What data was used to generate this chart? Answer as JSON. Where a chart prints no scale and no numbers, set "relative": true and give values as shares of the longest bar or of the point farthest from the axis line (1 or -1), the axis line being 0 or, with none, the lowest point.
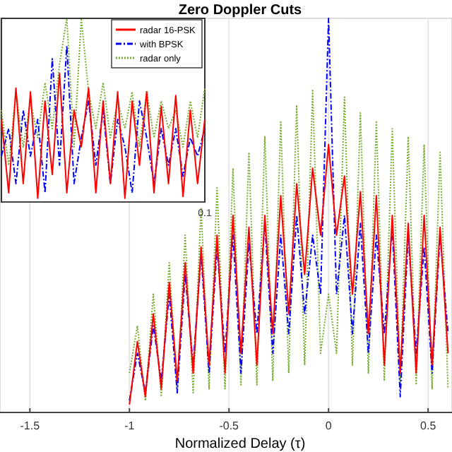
{
  "chart_data": [
    {
      "type": "line",
      "title": "Zero Doppler Cuts",
      "xlabel": "Normalized Delay (τ)",
      "relative": true,
      "grid": "x",
      "xlim": [
        -1.65,
        0.62
      ],
      "xticks": [
        -1.5,
        -1,
        -0.5,
        0,
        0.5
      ],
      "x": [
        -1,
        -0.96,
        -0.92,
        -0.88,
        -0.84,
        -0.8,
        -0.76,
        -0.72,
        -0.68,
        -0.64,
        -0.6,
        -0.56,
        -0.52,
        -0.48,
        -0.44,
        -0.4,
        -0.36,
        -0.32,
        -0.28,
        -0.24,
        -0.2,
        -0.16,
        -0.12,
        -0.08,
        -0.04,
        0,
        0.04,
        0.08,
        0.12,
        0.16,
        0.2,
        0.24,
        0.28,
        0.32,
        0.36,
        0.4,
        0.44,
        0.48,
        0.52,
        0.56,
        0.6
      ],
      "series": [
        {
          "color": "#ff0000",
          "line_style": "solid",
          "values": [
            0.02,
            0.18,
            0.04,
            0.25,
            0.06,
            0.33,
            0.08,
            0.38,
            0.1,
            0.42,
            0.12,
            0.45,
            0.1,
            0.5,
            0.15,
            0.47,
            0.12,
            0.5,
            0.2,
            0.55,
            0.25,
            0.58,
            0.35,
            0.62,
            0.45,
            0.68,
            0.45,
            0.6,
            0.3,
            0.56,
            0.2,
            0.55,
            0.12,
            0.5,
            0.1,
            0.48,
            0.1,
            0.5,
            0.12,
            0.47,
            0.15
          ]
        },
        {
          "color": "#0000ff",
          "line_style": "dashed",
          "values": [
            0.03,
            0.15,
            0.05,
            0.22,
            0.08,
            0.3,
            0.05,
            0.35,
            0.12,
            0.4,
            0.1,
            0.42,
            0.15,
            0.45,
            0.1,
            0.43,
            0.2,
            0.48,
            0.15,
            0.45,
            0.2,
            0.5,
            0.25,
            0.45,
            0.3,
            1,
            0.3,
            0.5,
            0.2,
            0.48,
            0.15,
            0.45,
            0.2,
            0.47,
            0.04,
            0.45,
            0.15,
            0.42,
            0.1,
            0.45,
            0.2
          ]
        },
        {
          "color": "#77ac30",
          "line_style": "dotted",
          "values": [
            0.1,
            0.22,
            0.03,
            0.3,
            0.04,
            0.38,
            0.05,
            0.45,
            0.05,
            0.52,
            0.06,
            0.57,
            0.06,
            0.62,
            0.07,
            0.66,
            0.07,
            0.7,
            0.08,
            0.74,
            0.1,
            0.78,
            0.12,
            0.82,
            0.15,
            0.3,
            0.15,
            0.8,
            0.12,
            0.76,
            0.1,
            0.74,
            0.08,
            0.72,
            0.07,
            0.7,
            0.07,
            0.68,
            0.06,
            0.66,
            0.06
          ]
        }
      ]
    },
    {
      "type": "line",
      "relative": true,
      "legend": "top right",
      "annotations": [
        "0.1"
      ],
      "categories": [
        null,
        null,
        null,
        null,
        null,
        null,
        null,
        null,
        null,
        null,
        null,
        null,
        null,
        null,
        null,
        null,
        null,
        null,
        null,
        null,
        null,
        null,
        null,
        null,
        null,
        null,
        null,
        null,
        null
      ],
      "series": [
        {
          "name": "radar 16-PSK",
          "color": "#ff0000",
          "line_style": "solid",
          "values": [
            0.45,
            0.05,
            0.62,
            0.1,
            0.6,
            0.02,
            0.55,
            0.15,
            0.7,
            0.05,
            0.5,
            0.3,
            0.62,
            0.05,
            0.55,
            0.1,
            0.6,
            0.02,
            0.55,
            0.2,
            0.6,
            0.05,
            0.52,
            0.1,
            0.58,
            0.03,
            0.5,
            0.1,
            0.45
          ]
        },
        {
          "name": "with BPSK",
          "color": "#0000ff",
          "line_style": "dashed",
          "values": [
            0.25,
            0.4,
            0.1,
            0.5,
            0.25,
            0.45,
            0.05,
            0.78,
            0.2,
            0.85,
            0.1,
            0.35,
            0.55,
            0.2,
            0.5,
            0.1,
            0.45,
            0.3,
            0.05,
            0.55,
            0.35,
            0.1,
            0.4,
            0.2,
            0.4,
            0.14,
            0.35,
            0.25,
            0.4
          ]
        },
        {
          "name": "radar only",
          "color": "#77ac30",
          "line_style": "dotted",
          "values": [
            0.5,
            0.2,
            0.6,
            0.3,
            0.55,
            0.35,
            0.65,
            0.4,
            0.75,
            1,
            0.3,
            1,
            0.6,
            0.4,
            0.65,
            0.35,
            0.55,
            0.4,
            0.6,
            0.3,
            0.6,
            0.35,
            0.55,
            0.4,
            0.5,
            0.3,
            0.55,
            0.35,
            0.62
          ]
        }
      ]
    }
  ]
}
